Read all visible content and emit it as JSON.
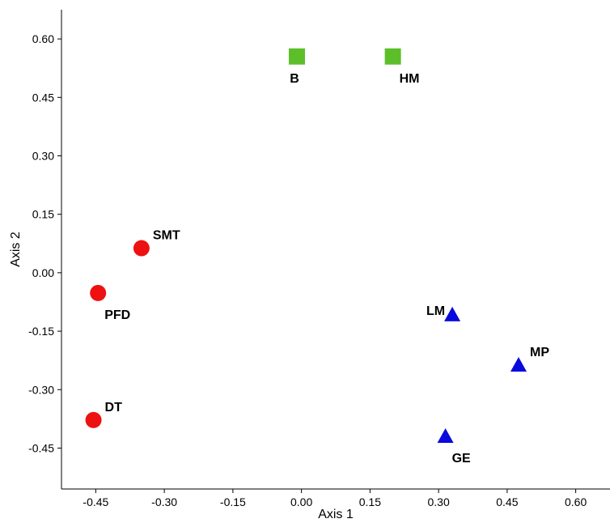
{
  "chart_data": {
    "type": "scatter",
    "title": "",
    "xlabel": "Axis 1",
    "ylabel": "Axis 2",
    "xlim": [
      -0.525,
      0.675
    ],
    "ylim": [
      -0.555,
      0.675
    ],
    "x_ticks": [
      "-0.45",
      "-0.30",
      "-0.15",
      "0.00",
      "0.15",
      "0.30",
      "0.45",
      "0.60"
    ],
    "x_tick_values": [
      -0.45,
      -0.3,
      -0.15,
      0.0,
      0.15,
      0.3,
      0.45,
      0.6
    ],
    "y_ticks": [
      "0.60",
      "0.45",
      "0.30",
      "0.15",
      "0.00",
      "-0.15",
      "-0.30",
      "-0.45"
    ],
    "y_tick_values": [
      0.6,
      0.45,
      0.3,
      0.15,
      0.0,
      -0.15,
      -0.3,
      -0.45
    ],
    "grid": false,
    "legend": "none",
    "groups": [
      {
        "marker": "square",
        "color": "#5cbf2a",
        "points": [
          {
            "label": "B",
            "x": -0.01,
            "y": 0.555,
            "label_pos": "below"
          },
          {
            "label": "HM",
            "x": 0.2,
            "y": 0.555,
            "label_pos": "below-right"
          }
        ]
      },
      {
        "marker": "circle",
        "color": "#ee1111",
        "points": [
          {
            "label": "SMT",
            "x": -0.35,
            "y": 0.063,
            "label_pos": "above-right"
          },
          {
            "label": "PFD",
            "x": -0.445,
            "y": -0.052,
            "label_pos": "below-right"
          },
          {
            "label": "DT",
            "x": -0.455,
            "y": -0.378,
            "label_pos": "above-right"
          }
        ]
      },
      {
        "marker": "triangle",
        "color": "#0a0adc",
        "points": [
          {
            "label": "LM",
            "x": 0.33,
            "y": -0.108,
            "label_pos": "left"
          },
          {
            "label": "MP",
            "x": 0.475,
            "y": -0.237,
            "label_pos": "above-right"
          },
          {
            "label": "GE",
            "x": 0.315,
            "y": -0.42,
            "label_pos": "below-right"
          }
        ]
      }
    ]
  }
}
